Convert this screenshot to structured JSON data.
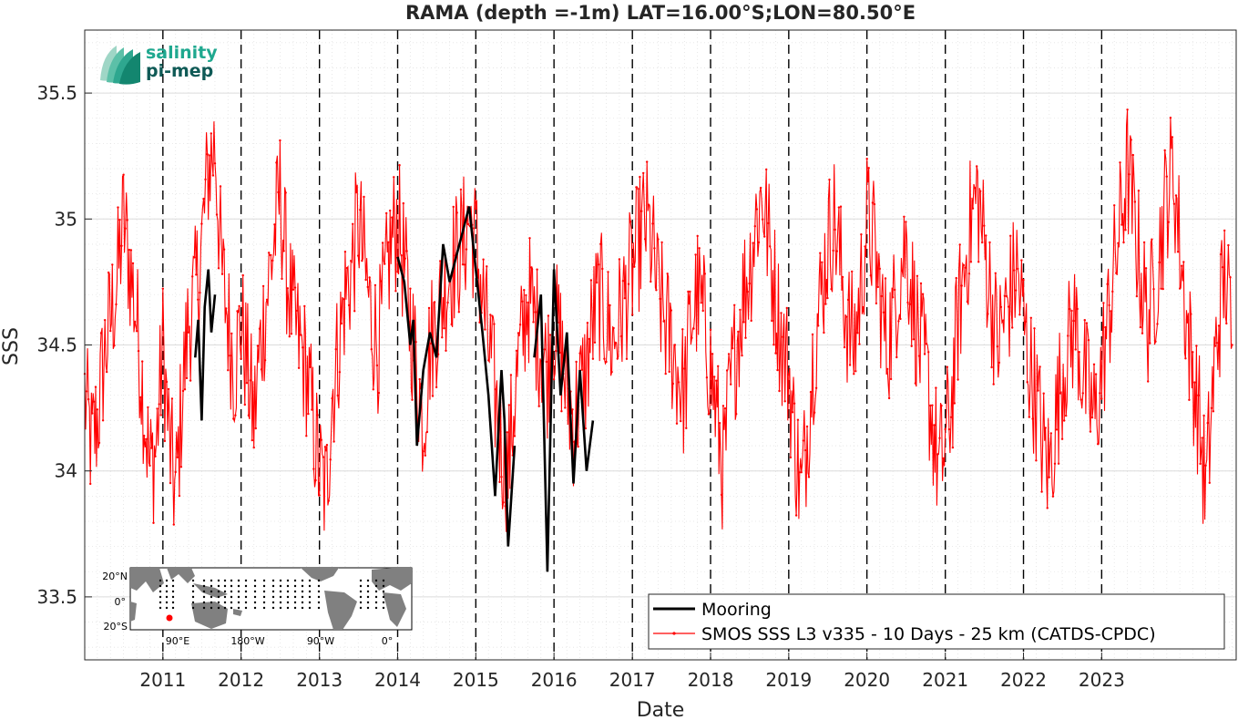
{
  "logo": {
    "line1": "salinity",
    "line2": "pi-mep",
    "color1": "#1fa88f",
    "color2": "#0f5a56"
  },
  "colors": {
    "mooring": "#000000",
    "smos": "#ff0000",
    "grid": "#d9d9d9",
    "land": "#808080"
  },
  "inset_map": {
    "lat_labels": [
      "20°N",
      "0°",
      "20°S"
    ],
    "lon_labels": [
      "90°E",
      "180°W",
      "90°W",
      "0°"
    ],
    "marker_color": "#ff0000"
  },
  "chart_data": {
    "type": "line",
    "title": "RAMA (depth =-1m) LAT=16.00°S;LON=80.50°E",
    "xlabel": "Date",
    "ylabel": "SSS",
    "xlim": [
      "2010-01-01",
      "2024-09-20"
    ],
    "ylim": [
      33.25,
      35.75
    ],
    "yticks": [
      33.5,
      34,
      34.5,
      35,
      35.5
    ],
    "ytick_labels": [
      "33.5",
      "34",
      "34.5",
      "35",
      "35.5"
    ],
    "xticks": [
      "2011-01-01",
      "2012-01-01",
      "2013-01-01",
      "2014-01-01",
      "2015-01-01",
      "2016-01-01",
      "2017-01-01",
      "2018-01-01",
      "2019-01-01",
      "2020-01-01",
      "2021-01-01",
      "2022-01-01",
      "2023-01-01"
    ],
    "xtick_labels": [
      "2011",
      "2012",
      "2013",
      "2014",
      "2015",
      "2016",
      "2017",
      "2018",
      "2019",
      "2020",
      "2021",
      "2022",
      "2023"
    ],
    "vertical_dashed_lines": [
      "2011-01-01",
      "2012-01-01",
      "2013-01-01",
      "2014-01-01",
      "2015-01-01",
      "2016-01-01",
      "2017-01-01",
      "2018-01-01",
      "2019-01-01",
      "2020-01-01",
      "2021-01-01",
      "2022-01-01",
      "2023-01-01"
    ],
    "grid": true,
    "legend_position": "bottom-right",
    "series": [
      {
        "name": "Mooring",
        "style": "line",
        "color": "#000000",
        "x": [
          "2011-06-01",
          "2011-06-15",
          "2011-07-01",
          "2011-07-15",
          "2011-08-01",
          "2011-08-15",
          "2011-09-01",
          "2014-01-01",
          "2014-02-01",
          "2014-03-01",
          "2014-03-15",
          "2014-04-01",
          "2014-05-01",
          "2014-06-01",
          "2014-07-01",
          "2014-08-01",
          "2014-09-01",
          "2014-10-01",
          "2014-11-01",
          "2014-12-01",
          "2015-01-01",
          "2015-02-01",
          "2015-03-01",
          "2015-04-01",
          "2015-05-01",
          "2015-05-15",
          "2015-06-01",
          "2015-07-01",
          "2015-10-01",
          "2015-11-01",
          "2015-12-01",
          "2016-01-01",
          "2016-02-01",
          "2016-03-01",
          "2016-04-01",
          "2016-05-01",
          "2016-06-01",
          "2016-07-01"
        ],
        "y": [
          34.45,
          34.6,
          34.2,
          34.65,
          34.8,
          34.55,
          34.7,
          34.85,
          34.75,
          34.5,
          34.6,
          34.1,
          34.4,
          34.55,
          34.45,
          34.9,
          34.75,
          34.85,
          34.95,
          35.05,
          34.8,
          34.55,
          34.3,
          33.9,
          34.4,
          34.2,
          33.7,
          34.1,
          34.45,
          34.7,
          33.6,
          34.8,
          34.3,
          34.55,
          33.95,
          34.4,
          34.0,
          34.2
        ]
      },
      {
        "name": "SMOS SSS L3 v335 - 10 Days - 25 km (CATDS-CPDC)",
        "style": "line-dots",
        "color": "#ff0000",
        "x": [
          "2010-01-01",
          "2010-02-01",
          "2010-03-01",
          "2010-04-01",
          "2010-05-01",
          "2010-06-01",
          "2010-07-01",
          "2010-08-01",
          "2010-09-01",
          "2010-10-01",
          "2010-11-01",
          "2010-12-01",
          "2011-01-01",
          "2011-02-01",
          "2011-03-01",
          "2011-04-01",
          "2011-05-01",
          "2011-06-01",
          "2011-07-01",
          "2011-08-01",
          "2011-09-01",
          "2011-10-01",
          "2011-11-01",
          "2011-12-01",
          "2012-01-01",
          "2012-02-01",
          "2012-03-01",
          "2012-04-01",
          "2012-05-01",
          "2012-06-01",
          "2012-07-01",
          "2012-08-01",
          "2012-09-01",
          "2012-10-01",
          "2012-11-01",
          "2012-12-01",
          "2013-01-01",
          "2013-02-01",
          "2013-03-01",
          "2013-04-01",
          "2013-05-01",
          "2013-06-01",
          "2013-07-01",
          "2013-08-01",
          "2013-09-01",
          "2013-10-01",
          "2013-11-01",
          "2013-12-01",
          "2014-01-01",
          "2014-02-01",
          "2014-03-01",
          "2014-04-01",
          "2014-05-01",
          "2014-06-01",
          "2014-07-01",
          "2014-08-01",
          "2014-09-01",
          "2014-10-01",
          "2014-11-01",
          "2014-12-01",
          "2015-01-01",
          "2015-02-01",
          "2015-03-01",
          "2015-04-01",
          "2015-05-01",
          "2015-06-01",
          "2015-07-01",
          "2015-08-01",
          "2015-09-01",
          "2015-10-01",
          "2015-11-01",
          "2015-12-01",
          "2016-01-01",
          "2016-02-01",
          "2016-03-01",
          "2016-04-01",
          "2016-05-01",
          "2016-06-01",
          "2016-07-01",
          "2016-08-01",
          "2016-09-01",
          "2016-10-01",
          "2016-11-01",
          "2016-12-01",
          "2017-01-01",
          "2017-02-01",
          "2017-03-01",
          "2017-04-01",
          "2017-05-01",
          "2017-06-01",
          "2017-07-01",
          "2017-08-01",
          "2017-09-01",
          "2017-10-01",
          "2017-11-01",
          "2017-12-01",
          "2018-01-01",
          "2018-02-01",
          "2018-03-01",
          "2018-04-01",
          "2018-05-01",
          "2018-06-01",
          "2018-07-01",
          "2018-08-01",
          "2018-09-01",
          "2018-10-01",
          "2018-11-01",
          "2018-12-01",
          "2019-01-01",
          "2019-02-01",
          "2019-03-01",
          "2019-04-01",
          "2019-05-01",
          "2019-06-01",
          "2019-07-01",
          "2019-08-01",
          "2019-09-01",
          "2019-10-01",
          "2019-11-01",
          "2019-12-01",
          "2020-01-01",
          "2020-02-01",
          "2020-03-01",
          "2020-04-01",
          "2020-05-01",
          "2020-06-01",
          "2020-07-01",
          "2020-08-01",
          "2020-09-01",
          "2020-10-01",
          "2020-11-01",
          "2020-12-01",
          "2021-01-01",
          "2021-02-01",
          "2021-03-01",
          "2021-04-01",
          "2021-05-01",
          "2021-06-01",
          "2021-07-01",
          "2021-08-01",
          "2021-09-01",
          "2021-10-01",
          "2021-11-01",
          "2021-12-01",
          "2022-01-01",
          "2022-02-01",
          "2022-03-01",
          "2022-04-01",
          "2022-05-01",
          "2022-06-01",
          "2022-07-01",
          "2022-08-01",
          "2022-09-01",
          "2022-10-01",
          "2022-11-01",
          "2022-12-01",
          "2023-01-01",
          "2023-02-01",
          "2023-03-01",
          "2023-04-01",
          "2023-05-01",
          "2023-06-01",
          "2023-07-01",
          "2023-08-01",
          "2023-09-01",
          "2023-10-01",
          "2023-11-01",
          "2023-12-01",
          "2024-01-01",
          "2024-02-01",
          "2024-03-01",
          "2024-04-01",
          "2024-05-01",
          "2024-06-01",
          "2024-07-01",
          "2024-08-01",
          "2024-09-01"
        ],
        "y": [
          34.3,
          34.1,
          34.2,
          34.45,
          34.6,
          34.75,
          35.0,
          34.8,
          34.6,
          34.3,
          34.0,
          34.1,
          34.5,
          34.1,
          33.9,
          34.3,
          34.6,
          34.7,
          34.9,
          35.2,
          35.3,
          34.8,
          34.6,
          34.4,
          34.6,
          34.4,
          34.2,
          34.5,
          34.7,
          34.9,
          35.1,
          34.8,
          34.6,
          34.5,
          34.4,
          34.2,
          34.0,
          33.9,
          34.3,
          34.5,
          34.7,
          34.8,
          35.0,
          34.8,
          34.6,
          34.5,
          34.7,
          34.9,
          35.0,
          34.8,
          34.6,
          34.4,
          34.2,
          34.5,
          34.6,
          34.7,
          34.8,
          34.85,
          34.9,
          35.0,
          34.9,
          34.7,
          34.5,
          34.3,
          34.1,
          34.0,
          34.3,
          34.5,
          34.7,
          34.6,
          34.5,
          34.4,
          34.6,
          34.5,
          34.3,
          34.2,
          34.3,
          34.4,
          34.6,
          34.7,
          34.6,
          34.5,
          34.6,
          34.7,
          34.8,
          34.9,
          35.0,
          34.9,
          34.7,
          34.6,
          34.5,
          34.4,
          34.3,
          34.6,
          34.7,
          34.6,
          34.4,
          34.2,
          34.0,
          34.3,
          34.5,
          34.7,
          34.8,
          35.0,
          35.1,
          34.9,
          34.7,
          34.5,
          34.4,
          34.1,
          33.9,
          34.2,
          34.5,
          34.7,
          34.9,
          35.0,
          34.8,
          34.6,
          34.5,
          34.7,
          35.0,
          34.9,
          34.7,
          34.5,
          34.6,
          34.8,
          34.9,
          34.7,
          34.5,
          34.4,
          34.2,
          34.0,
          34.1,
          34.3,
          34.6,
          34.8,
          35.0,
          35.1,
          34.9,
          34.7,
          34.5,
          34.6,
          34.7,
          34.8,
          34.6,
          34.4,
          34.3,
          34.1,
          34.0,
          34.2,
          34.4,
          34.5,
          34.6,
          34.4,
          34.3,
          34.2,
          34.4,
          34.6,
          34.8,
          35.0,
          35.2,
          35.0,
          34.8,
          34.6,
          34.7,
          34.9,
          35.1,
          35.2,
          34.9,
          34.6,
          34.4,
          34.2,
          33.9,
          34.3,
          34.6,
          34.8,
          34.5
        ]
      }
    ]
  }
}
